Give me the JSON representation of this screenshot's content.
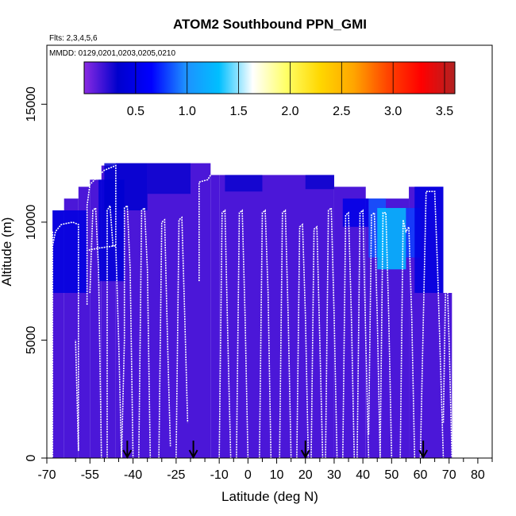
{
  "chart_data": {
    "type": "heatmap",
    "title": "ATOM2 Southbound PPN_GMI",
    "subtitle_flights": "Flts: 2,3,4,5,6",
    "subtitle_dates": "MMDD: 0129,0201,0203,0205,0210",
    "xlabel": "Latitude (deg N)",
    "ylabel": "Altitude (m)",
    "xlim": [
      -70,
      85
    ],
    "ylim": [
      0,
      17500
    ],
    "x_ticks": [
      -70,
      -55,
      -40,
      -25,
      -10,
      0,
      10,
      20,
      30,
      40,
      50,
      60,
      70,
      80
    ],
    "x_tick_labels": [
      "-70",
      "-55",
      "-40",
      "-25",
      "-10",
      "0",
      "10",
      "20",
      "30",
      "40",
      "50",
      "60",
      "70",
      "80"
    ],
    "x_minor_ticks": [
      -60,
      -50,
      -45,
      -35,
      -30,
      -20,
      -15,
      -5,
      5,
      15,
      25,
      35,
      45,
      55,
      65,
      75,
      85
    ],
    "y_ticks": [
      0,
      5000,
      10000,
      15000
    ],
    "y_tick_labels": [
      "0",
      "5000",
      "10000",
      "15000"
    ],
    "colorbar": {
      "range": [
        0,
        3.6
      ],
      "ticks": [
        0.5,
        1.0,
        1.5,
        2.0,
        2.5,
        3.0,
        3.5
      ],
      "tick_labels": [
        "0.5",
        "1.0",
        "1.5",
        "2.0",
        "2.5",
        "3.0",
        "3.5"
      ],
      "colors": [
        "#8a2be2",
        "#0000cd",
        "#0000ff",
        "#1e90ff",
        "#00bfff",
        "#ffffff",
        "#ffff66",
        "#ffd700",
        "#ffa500",
        "#ff4500",
        "#ff0000",
        "#b22222"
      ]
    },
    "arrow_latitudes": [
      -42,
      -19,
      20,
      61
    ],
    "background_value": 0.15,
    "columns": [
      {
        "x": [
          -68,
          -64
        ],
        "top": 10500
      },
      {
        "x": [
          -64,
          -59
        ],
        "top": 11000
      },
      {
        "x": [
          -59,
          -55
        ],
        "top": 11500
      },
      {
        "x": [
          -55,
          -51
        ],
        "top": 11800
      },
      {
        "x": [
          -51,
          -46
        ],
        "top": 12400
      },
      {
        "x": [
          -46,
          -13
        ],
        "top": 12500
      },
      {
        "x": [
          -13,
          -10
        ],
        "top": 12000
      },
      {
        "x": [
          -10,
          30
        ],
        "top": 12000
      },
      {
        "x": [
          30,
          41
        ],
        "top": 11500
      },
      {
        "x": [
          41,
          56
        ],
        "top": 11000
      },
      {
        "x": [
          56,
          68
        ],
        "top": 11500
      },
      {
        "x": [
          68,
          71
        ],
        "top": 7000
      }
    ],
    "value_patches": [
      {
        "x": [
          -68,
          -56
        ],
        "y": [
          7000,
          10500
        ],
        "value": 0.45
      },
      {
        "x": [
          -52,
          -43
        ],
        "y": [
          7500,
          11800
        ],
        "value": 0.4
      },
      {
        "x": [
          -50,
          -35
        ],
        "y": [
          10500,
          12500
        ],
        "value": 0.35
      },
      {
        "x": [
          -35,
          -20
        ],
        "y": [
          11200,
          12500
        ],
        "value": 0.3
      },
      {
        "x": [
          -8,
          5
        ],
        "y": [
          11300,
          12000
        ],
        "value": 0.3
      },
      {
        "x": [
          20,
          30
        ],
        "y": [
          11400,
          12000
        ],
        "value": 0.3
      },
      {
        "x": [
          33,
          42
        ],
        "y": [
          9800,
          11000
        ],
        "value": 0.5
      },
      {
        "x": [
          42,
          48
        ],
        "y": [
          8500,
          11000
        ],
        "value": 0.85
      },
      {
        "x": [
          45,
          55
        ],
        "y": [
          8000,
          10600
        ],
        "value": 1.3
      },
      {
        "x": [
          55,
          60
        ],
        "y": [
          8500,
          10600
        ],
        "value": 0.8
      },
      {
        "x": [
          58,
          68
        ],
        "y": [
          7000,
          11500
        ],
        "value": 0.45
      }
    ],
    "flight_tracks": [
      [
        [
          -68,
          9000
        ],
        [
          -67,
          9600
        ],
        [
          -65,
          9900
        ],
        [
          -61,
          10000
        ],
        [
          -59,
          9900
        ],
        [
          -59,
          300
        ],
        [
          -60,
          5000
        ]
      ],
      [
        [
          -68,
          9600
        ],
        [
          -68,
          0
        ]
      ],
      [
        [
          -56,
          6500
        ],
        [
          -56,
          10700
        ],
        [
          -55,
          11600
        ],
        [
          -50,
          12200
        ],
        [
          -46,
          12400
        ],
        [
          -46,
          9000
        ],
        [
          -52,
          8900
        ],
        [
          -56,
          8800
        ]
      ],
      [
        [
          -55,
          7000
        ],
        [
          -54,
          10500
        ],
        [
          -53,
          10600
        ],
        [
          -52,
          8000
        ],
        [
          -51,
          0
        ]
      ],
      [
        [
          -49,
          0
        ],
        [
          -49,
          10500
        ],
        [
          -48,
          10700
        ],
        [
          -47,
          9000
        ],
        [
          -46,
          9000
        ],
        [
          -45,
          5000
        ],
        [
          -44,
          0
        ]
      ],
      [
        [
          -44,
          0
        ],
        [
          -43,
          5000
        ],
        [
          -43,
          10600
        ],
        [
          -42,
          10700
        ],
        [
          -41,
          8000
        ],
        [
          -40,
          0
        ]
      ],
      [
        [
          -38,
          0
        ],
        [
          -37,
          10500
        ],
        [
          -36,
          10600
        ],
        [
          -35,
          8000
        ],
        [
          -34,
          0
        ]
      ],
      [
        [
          -31,
          0
        ],
        [
          -30,
          10000
        ],
        [
          -29,
          10100
        ],
        [
          -28,
          5000
        ],
        [
          -27,
          500
        ]
      ],
      [
        [
          -25,
          0
        ],
        [
          -24,
          10100
        ],
        [
          -23,
          10200
        ],
        [
          -22,
          6000
        ],
        [
          -21,
          1500
        ]
      ],
      [
        [
          -17,
          7500
        ],
        [
          -17,
          11700
        ],
        [
          -14,
          11800
        ],
        [
          -13,
          12000
        ],
        [
          -12,
          12100
        ]
      ],
      [
        [
          -10,
          0
        ],
        [
          -9,
          10400
        ],
        [
          -8,
          10500
        ],
        [
          -7,
          5000
        ],
        [
          -6,
          0
        ]
      ],
      [
        [
          -4,
          0
        ],
        [
          -3,
          10400
        ],
        [
          -2,
          10500
        ],
        [
          -1,
          6000
        ],
        [
          0,
          0
        ]
      ],
      [
        [
          4,
          0
        ],
        [
          5,
          10400
        ],
        [
          6,
          10500
        ],
        [
          7,
          7000
        ],
        [
          8,
          0
        ]
      ],
      [
        [
          11,
          0
        ],
        [
          12,
          10400
        ],
        [
          13,
          10500
        ],
        [
          14,
          6000
        ],
        [
          15,
          0
        ]
      ],
      [
        [
          17,
          0
        ],
        [
          18,
          9800
        ],
        [
          19,
          9900
        ],
        [
          20,
          6000
        ],
        [
          21,
          0
        ]
      ],
      [
        [
          22,
          0
        ],
        [
          23,
          9700
        ],
        [
          24,
          9800
        ],
        [
          25,
          5000
        ],
        [
          26,
          0
        ]
      ],
      [
        [
          27,
          0
        ],
        [
          28,
          10500
        ],
        [
          29,
          10600
        ],
        [
          30,
          6000
        ],
        [
          31,
          0
        ]
      ],
      [
        [
          33,
          0
        ],
        [
          34,
          10300
        ],
        [
          35,
          10400
        ],
        [
          36,
          6000
        ],
        [
          37,
          0
        ]
      ],
      [
        [
          38,
          0
        ],
        [
          39,
          10400
        ],
        [
          40,
          10500
        ],
        [
          41,
          5000
        ],
        [
          42,
          0
        ]
      ],
      [
        [
          42,
          1000
        ],
        [
          43,
          10300
        ],
        [
          44,
          10400
        ],
        [
          45,
          6000
        ],
        [
          46,
          0
        ]
      ],
      [
        [
          46,
          0
        ],
        [
          47,
          10400
        ],
        [
          48,
          10400
        ],
        [
          49,
          6000
        ],
        [
          50,
          0
        ]
      ],
      [
        [
          53,
          0
        ],
        [
          54,
          10100
        ],
        [
          55,
          9600
        ],
        [
          56,
          9800
        ],
        [
          57,
          6000
        ],
        [
          58,
          0
        ]
      ],
      [
        [
          60,
          0
        ],
        [
          62,
          11300
        ],
        [
          65,
          11300
        ],
        [
          66,
          8000
        ],
        [
          68,
          0
        ]
      ],
      [
        [
          68,
          1500
        ],
        [
          69,
          9000
        ],
        [
          70,
          5000
        ],
        [
          71,
          0
        ]
      ]
    ]
  }
}
